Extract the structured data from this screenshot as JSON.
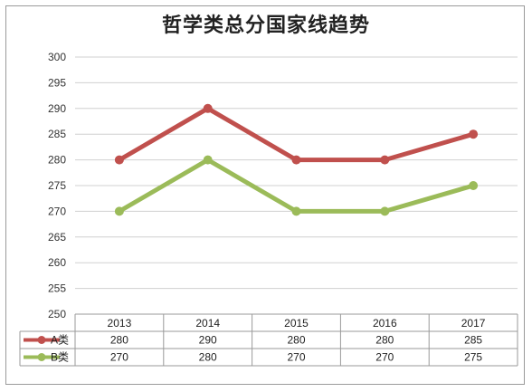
{
  "chart_data": {
    "type": "line",
    "title": "哲学类总分国家线趋势",
    "xlabel": "",
    "ylabel": "",
    "categories": [
      "2013",
      "2014",
      "2015",
      "2016",
      "2017"
    ],
    "ylim": [
      250,
      300
    ],
    "yticks": [
      250,
      255,
      260,
      265,
      270,
      275,
      280,
      285,
      290,
      295,
      300
    ],
    "grid": true,
    "data_table": true,
    "series": [
      {
        "name": "A类",
        "color": "#c0504d",
        "values": [
          280,
          290,
          280,
          280,
          285
        ]
      },
      {
        "name": "B类",
        "color": "#9bbb59",
        "values": [
          270,
          280,
          270,
          270,
          275
        ]
      }
    ]
  }
}
